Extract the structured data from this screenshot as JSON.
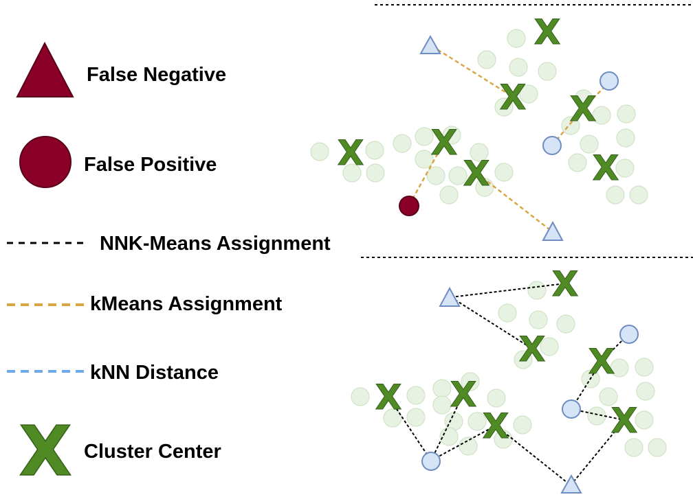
{
  "legend": {
    "false_negative": "False Negative",
    "false_positive": "False Positive",
    "nnk_means": "NNK-Means Assignment",
    "kmeans": "kMeans Assignment",
    "knn": "kNN Distance",
    "cluster_center": "Cluster Center"
  },
  "colors": {
    "false_marker_fill": "#8b0029",
    "false_marker_stroke": "#5a0018",
    "cluster_center": "#4f8a25",
    "nnk_line": "#000000",
    "kmeans_line": "#d8a645",
    "knn_line": "#6ea8e8",
    "query_fill": "#d6e4f7",
    "query_stroke": "#6d8cc0",
    "background_point": "#e8f2e3"
  },
  "glyphs": {
    "cluster_center": "X"
  },
  "icons": [
    "triangle-icon",
    "circle-icon",
    "cluster-center-icon"
  ]
}
